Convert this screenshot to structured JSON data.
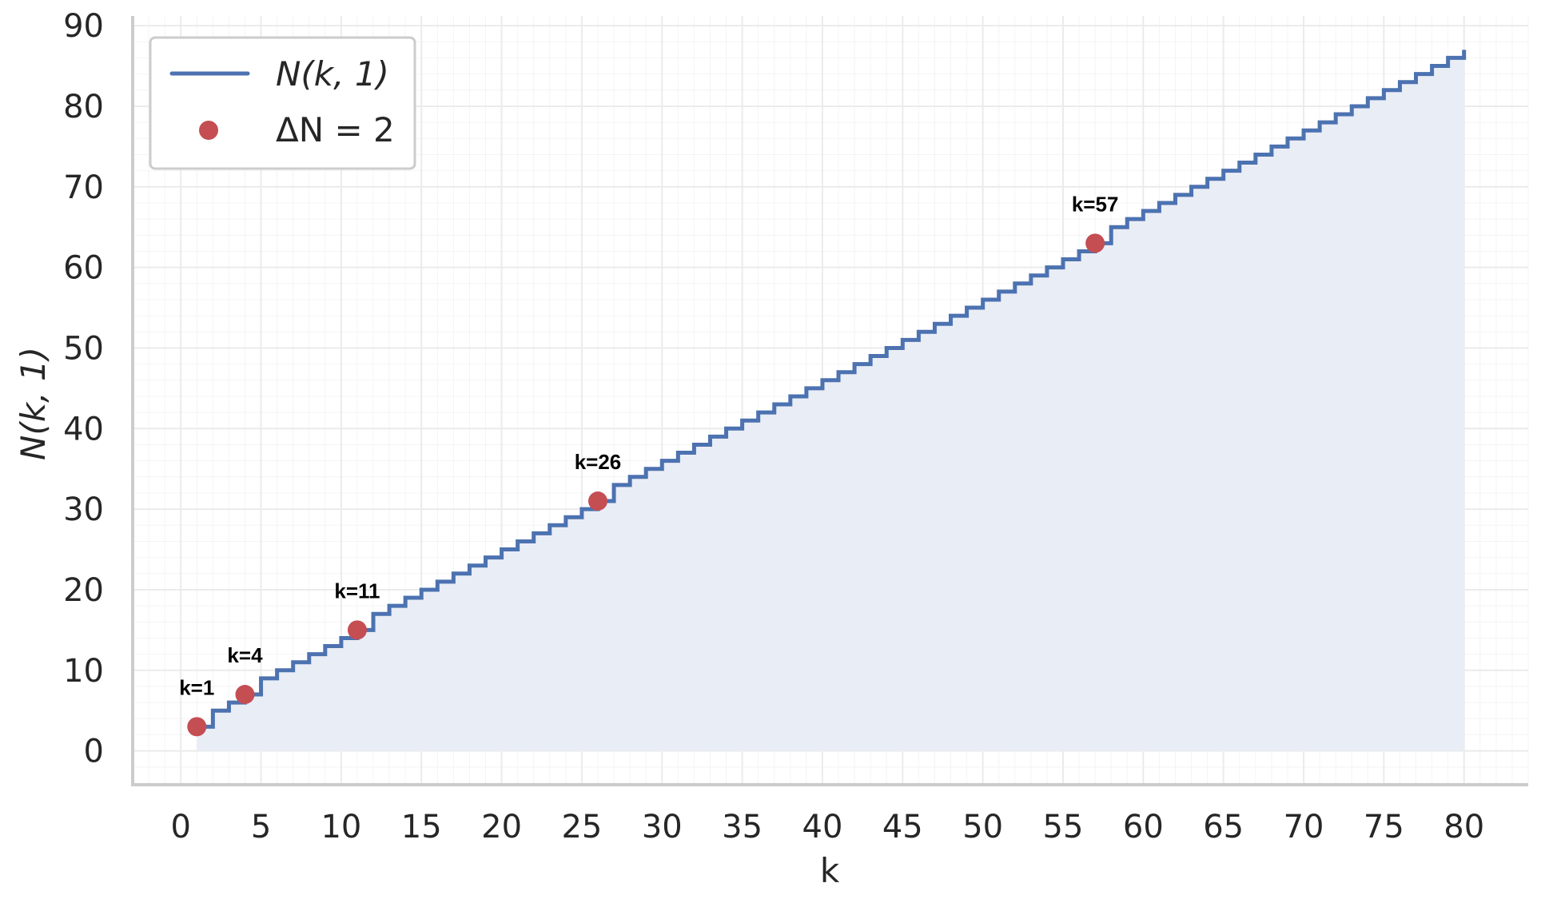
{
  "chart_data": {
    "type": "line",
    "line_style": "step",
    "xlabel": "k",
    "ylabel": "N(k, 1)",
    "xlim": [
      -3,
      84
    ],
    "ylim": [
      -4.2,
      91.2
    ],
    "x_ticks": [
      0,
      5,
      10,
      15,
      20,
      25,
      30,
      35,
      40,
      45,
      50,
      55,
      60,
      65,
      70,
      75,
      80
    ],
    "y_ticks": [
      0,
      10,
      20,
      30,
      40,
      50,
      60,
      70,
      80,
      90
    ],
    "grid": true,
    "minor_grid": true,
    "fill_under_line": true,
    "legend_position": "top-left",
    "series": [
      {
        "name": "N(k, 1)",
        "kind": "step-line",
        "color": "#4c72b0",
        "x": [
          1,
          2,
          3,
          4,
          5,
          6,
          7,
          8,
          9,
          10,
          11,
          12,
          13,
          14,
          15,
          16,
          17,
          18,
          19,
          20,
          21,
          22,
          23,
          24,
          25,
          26,
          27,
          28,
          29,
          30,
          31,
          32,
          33,
          34,
          35,
          36,
          37,
          38,
          39,
          40,
          41,
          42,
          43,
          44,
          45,
          46,
          47,
          48,
          49,
          50,
          51,
          52,
          53,
          54,
          55,
          56,
          57,
          58,
          59,
          60,
          61,
          62,
          63,
          64,
          65,
          66,
          67,
          68,
          69,
          70,
          71,
          72,
          73,
          74,
          75,
          76,
          77,
          78,
          79,
          80
        ],
        "y": [
          3,
          5,
          6,
          7,
          9,
          10,
          11,
          12,
          13,
          14,
          15,
          17,
          18,
          19,
          20,
          21,
          22,
          23,
          24,
          25,
          26,
          27,
          28,
          29,
          30,
          31,
          33,
          34,
          35,
          36,
          37,
          38,
          39,
          40,
          41,
          42,
          43,
          44,
          45,
          46,
          47,
          48,
          49,
          50,
          51,
          52,
          53,
          54,
          55,
          56,
          57,
          58,
          59,
          60,
          61,
          62,
          63,
          65,
          66,
          67,
          68,
          69,
          70,
          71,
          72,
          73,
          74,
          75,
          76,
          77,
          78,
          79,
          80,
          81,
          82,
          83,
          84,
          85,
          86,
          87
        ]
      },
      {
        "name": "ΔN = 2",
        "kind": "markers",
        "color": "#c44e52",
        "points": [
          {
            "x": 1,
            "y": 3,
            "label": "k=1"
          },
          {
            "x": 4,
            "y": 7,
            "label": "k=4"
          },
          {
            "x": 11,
            "y": 15,
            "label": "k=11"
          },
          {
            "x": 26,
            "y": 31,
            "label": "k=26"
          },
          {
            "x": 57,
            "y": 63,
            "label": "k=57"
          }
        ]
      }
    ]
  },
  "colors": {
    "line": "#4c72b0",
    "fill": "#e9edf6",
    "marker": "#c44e52",
    "grid_major": "#ebebeb",
    "grid_minor": "#f4f4f4",
    "spine": "#cccccc",
    "text": "#262626"
  }
}
